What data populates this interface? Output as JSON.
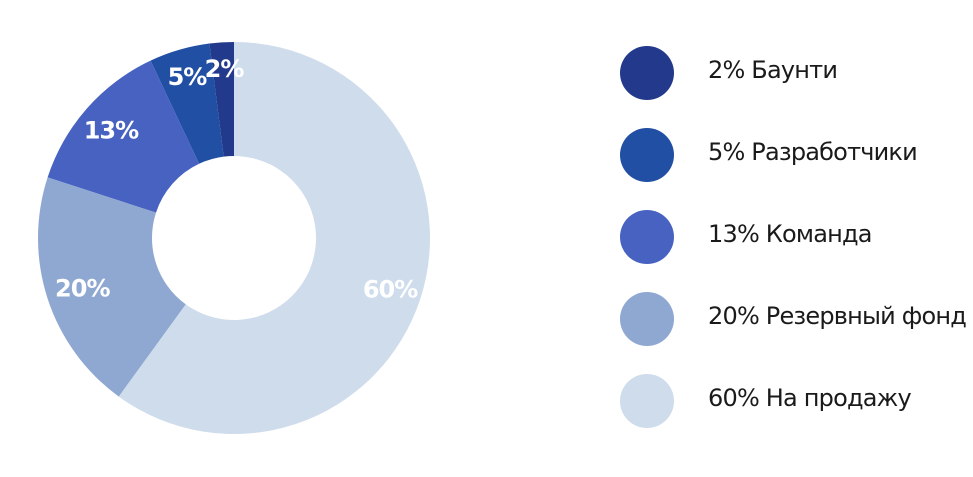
{
  "chart_data": {
    "type": "pie",
    "slices": [
      {
        "label": "Баунти",
        "value": 2,
        "value_label": "2%",
        "legend_text": "2% Баунти",
        "color": "#23398c"
      },
      {
        "label": "Разработчики",
        "value": 5,
        "value_label": "5%",
        "legend_text": "5% Разработчики",
        "color": "#214fa3"
      },
      {
        "label": "Команда",
        "value": 13,
        "value_label": "13%",
        "legend_text": "13% Команда",
        "color": "#4862c1"
      },
      {
        "label": "Резервный фонд",
        "value": 20,
        "value_label": "20%",
        "legend_text": "20% Резервный фонд",
        "color": "#8fa8d2"
      },
      {
        "label": "На продажу",
        "value": 60,
        "value_label": "60%",
        "legend_text": "60% На продажу",
        "color": "#cedcec"
      }
    ],
    "donut": true,
    "start": "top",
    "direction": "counterclockwise",
    "legend_position": "right"
  }
}
